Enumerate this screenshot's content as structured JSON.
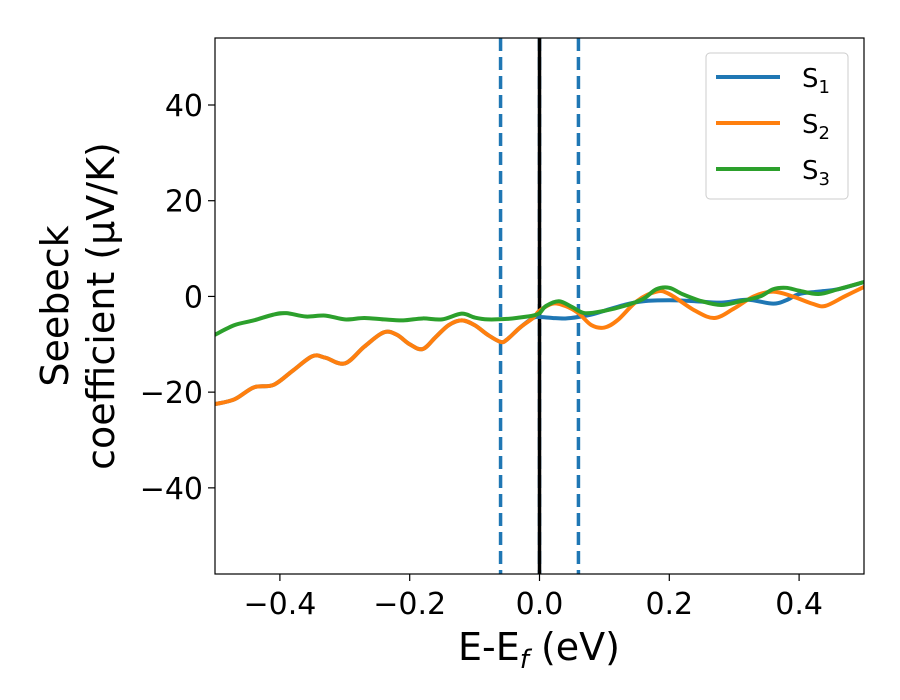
{
  "chart_data": {
    "type": "line",
    "xlabel_main": "E-E",
    "xlabel_sub": "f",
    "xlabel_unit": " (eV)",
    "ylabel_line1": "Seebeck",
    "ylabel_line2": "coefficient  (μV/K)",
    "xlim": [
      -0.5,
      0.5
    ],
    "ylim": [
      -58,
      54
    ],
    "x_ticks": [
      -0.4,
      -0.2,
      0.0,
      0.2,
      0.4
    ],
    "x_tick_labels": [
      "−0.4",
      "−0.2",
      "0.0",
      "0.2",
      "0.4"
    ],
    "y_ticks": [
      40,
      20,
      0,
      -20,
      -40
    ],
    "y_tick_labels": [
      "40",
      "20",
      "0",
      "−20",
      "−40"
    ],
    "grid": false,
    "legend_position": "top-right",
    "vertical_lines": [
      {
        "x": -0.06,
        "style": "dashed",
        "color": "#1f77b4"
      },
      {
        "x": 0.06,
        "style": "dashed",
        "color": "#1f77b4"
      },
      {
        "x": 0.0,
        "style": "dashed",
        "color": "#1f77b4"
      },
      {
        "x": 0.0,
        "style": "solid",
        "color": "#000000"
      }
    ],
    "series": [
      {
        "name": "S",
        "sub": "1",
        "color": "#1f77b4",
        "x": [
          -0.5,
          -0.47,
          -0.44,
          -0.41,
          -0.38,
          -0.35,
          -0.33,
          -0.3,
          -0.27,
          -0.24,
          -0.22,
          -0.2,
          -0.18,
          -0.16,
          -0.14,
          -0.12,
          -0.1,
          -0.08,
          -0.06,
          -0.05,
          -0.03,
          -0.01,
          0.0,
          0.02,
          0.04,
          0.06,
          0.08,
          0.1,
          0.13,
          0.16,
          0.2,
          0.24,
          0.28,
          0.32,
          0.36,
          0.38,
          0.4,
          0.43,
          0.46,
          0.5
        ],
        "y": [
          -22.5,
          -21.5,
          -19,
          -18.5,
          -15.5,
          -12.5,
          -12.8,
          -14,
          -10.5,
          -7.5,
          -8,
          -10,
          -11,
          -8.5,
          -6,
          -5,
          -6,
          -8,
          -9.5,
          -9,
          -6.5,
          -4.5,
          -4.3,
          -4.5,
          -4.6,
          -4.3,
          -3.8,
          -3,
          -1.8,
          -1,
          -0.8,
          -1,
          -1.3,
          -0.7,
          -1.5,
          -0.8,
          0.5,
          1,
          1.5,
          3
        ]
      },
      {
        "name": "S",
        "sub": "2",
        "color": "#ff7f0e",
        "x": [
          -0.5,
          -0.47,
          -0.44,
          -0.41,
          -0.38,
          -0.35,
          -0.33,
          -0.3,
          -0.27,
          -0.24,
          -0.22,
          -0.2,
          -0.18,
          -0.16,
          -0.14,
          -0.12,
          -0.1,
          -0.08,
          -0.06,
          -0.05,
          -0.03,
          -0.01,
          0.0,
          0.02,
          0.04,
          0.06,
          0.08,
          0.1,
          0.12,
          0.15,
          0.18,
          0.2,
          0.24,
          0.27,
          0.3,
          0.33,
          0.36,
          0.39,
          0.42,
          0.44,
          0.47,
          0.5
        ],
        "y": [
          -22.5,
          -21.5,
          -19,
          -18.5,
          -15.5,
          -12.5,
          -12.8,
          -14,
          -10.5,
          -7.5,
          -8,
          -10,
          -11,
          -8.5,
          -6,
          -5,
          -6,
          -8,
          -9.5,
          -9,
          -6.5,
          -4.5,
          -3,
          -1.5,
          -2,
          -3.5,
          -6,
          -6.5,
          -5,
          -1,
          1,
          0.5,
          -3,
          -4.5,
          -2.5,
          0,
          1,
          0,
          -1.5,
          -2,
          0,
          2
        ]
      },
      {
        "name": "S",
        "sub": "3",
        "color": "#2ca02c",
        "x": [
          -0.5,
          -0.47,
          -0.44,
          -0.41,
          -0.39,
          -0.36,
          -0.33,
          -0.3,
          -0.27,
          -0.24,
          -0.21,
          -0.18,
          -0.15,
          -0.12,
          -0.1,
          -0.08,
          -0.05,
          -0.03,
          -0.01,
          0.0,
          0.01,
          0.03,
          0.05,
          0.07,
          0.1,
          0.13,
          0.16,
          0.18,
          0.2,
          0.22,
          0.25,
          0.28,
          0.31,
          0.34,
          0.36,
          0.38,
          0.4,
          0.43,
          0.46,
          0.5
        ],
        "y": [
          -8,
          -6,
          -5,
          -3.8,
          -3.5,
          -4.2,
          -4,
          -4.8,
          -4.5,
          -4.8,
          -5,
          -4.6,
          -4.8,
          -3.6,
          -4.4,
          -4.8,
          -4.7,
          -4.4,
          -4,
          -3.5,
          -2,
          -1,
          -2.2,
          -3.5,
          -3,
          -2,
          -0.5,
          1.5,
          1.8,
          0.5,
          -1,
          -1.8,
          -1,
          0,
          1.5,
          1.8,
          1.2,
          0.5,
          1.5,
          3
        ]
      }
    ]
  }
}
